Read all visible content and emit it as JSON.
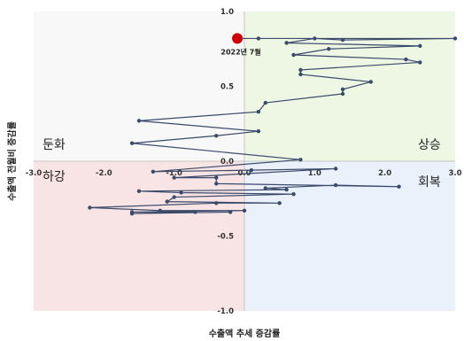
{
  "chart_data": {
    "type": "line",
    "xlabel": "수출액 추세 증감률",
    "ylabel": "수출액 전월비 증감률",
    "xlim": [
      -3.0,
      3.0
    ],
    "ylim": [
      -1.0,
      1.0
    ],
    "x_ticks": [
      "-3.0",
      "-2.0",
      "-1.0",
      "0.0",
      "1.0",
      "2.0",
      "3.0"
    ],
    "y_ticks": [
      "1.0",
      "0.5",
      "0.0",
      "-0.5",
      "-1.0"
    ],
    "grid": false,
    "quadrants": {
      "top_left": {
        "label": "둔화",
        "color": "#f8f8f8"
      },
      "top_right": {
        "label": "상승",
        "color": "#eef6e4"
      },
      "bottom_left": {
        "label": "하강",
        "color": "#f8e4e4"
      },
      "bottom_right": {
        "label": "회복",
        "color": "#eaf1fa"
      }
    },
    "line_color": "#3b4a6b",
    "highlight": {
      "label": "2022년 7월",
      "x": -0.1,
      "y": 0.82,
      "color": "#cc0000"
    },
    "points": [
      [
        -0.1,
        0.82
      ],
      [
        0.2,
        0.82
      ],
      [
        3.0,
        0.82
      ],
      [
        1.4,
        0.81
      ],
      [
        1.0,
        0.82
      ],
      [
        0.6,
        0.79
      ],
      [
        2.5,
        0.77
      ],
      [
        1.2,
        0.75
      ],
      [
        0.7,
        0.71
      ],
      [
        2.3,
        0.68
      ],
      [
        2.5,
        0.66
      ],
      [
        0.8,
        0.61
      ],
      [
        0.8,
        0.58
      ],
      [
        1.8,
        0.53
      ],
      [
        1.4,
        0.48
      ],
      [
        1.4,
        0.45
      ],
      [
        0.3,
        0.39
      ],
      [
        0.2,
        0.33
      ],
      [
        -1.5,
        0.27
      ],
      [
        0.2,
        0.2
      ],
      [
        -0.4,
        0.17
      ],
      [
        -1.6,
        0.12
      ],
      [
        0.8,
        0.01
      ],
      [
        -1.3,
        -0.07
      ],
      [
        0.1,
        -0.06
      ],
      [
        1.3,
        -0.05
      ],
      [
        -1.0,
        -0.11
      ],
      [
        -0.4,
        -0.11
      ],
      [
        -0.4,
        -0.15
      ],
      [
        2.2,
        -0.17
      ],
      [
        1.3,
        -0.16
      ],
      [
        0.3,
        -0.18
      ],
      [
        0.6,
        -0.19
      ],
      [
        -1.5,
        -0.2
      ],
      [
        -0.9,
        -0.21
      ],
      [
        0.7,
        -0.22
      ],
      [
        -1.0,
        -0.24
      ],
      [
        -1.1,
        -0.27
      ],
      [
        0.5,
        -0.28
      ],
      [
        -0.4,
        -0.28
      ],
      [
        -2.2,
        -0.31
      ],
      [
        -1.2,
        -0.33
      ],
      [
        0.0,
        -0.33
      ],
      [
        -1.6,
        -0.34
      ],
      [
        -0.7,
        -0.34
      ],
      [
        -1.6,
        -0.35
      ],
      [
        -0.2,
        -0.34
      ]
    ]
  }
}
